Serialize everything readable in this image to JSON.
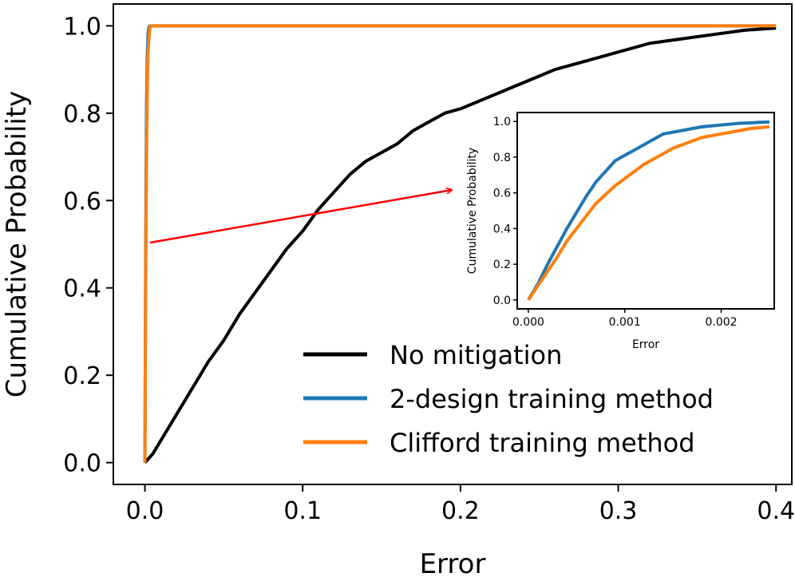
{
  "chart_data": [
    {
      "type": "line",
      "xlabel": "Error",
      "ylabel": "Cumulative Probability",
      "xlim": [
        -0.02,
        0.41
      ],
      "ylim": [
        -0.05,
        1.05
      ],
      "xticks": [
        "0.0",
        "0.1",
        "0.2",
        "0.3",
        "0.4"
      ],
      "yticks": [
        "0.0",
        "0.2",
        "0.4",
        "0.6",
        "0.8",
        "1.0"
      ],
      "legend": "lower-right",
      "grid": false,
      "series": [
        {
          "name": "No mitigation",
          "color": "#000000",
          "x": [
            0.0,
            0.005,
            0.01,
            0.015,
            0.02,
            0.03,
            0.04,
            0.05,
            0.06,
            0.07,
            0.08,
            0.09,
            0.1,
            0.11,
            0.12,
            0.13,
            0.14,
            0.15,
            0.16,
            0.17,
            0.18,
            0.19,
            0.2,
            0.22,
            0.24,
            0.26,
            0.28,
            0.3,
            0.32,
            0.34,
            0.36,
            0.38,
            0.4
          ],
          "y": [
            0.0,
            0.02,
            0.05,
            0.08,
            0.11,
            0.17,
            0.23,
            0.28,
            0.34,
            0.39,
            0.44,
            0.49,
            0.53,
            0.58,
            0.62,
            0.66,
            0.69,
            0.71,
            0.73,
            0.76,
            0.78,
            0.8,
            0.81,
            0.84,
            0.87,
            0.9,
            0.92,
            0.94,
            0.96,
            0.97,
            0.98,
            0.99,
            0.995
          ]
        },
        {
          "name": "2-design training method",
          "color": "#1f77b4",
          "x": [
            0.0,
            0.0005,
            0.001,
            0.0015,
            0.002,
            0.0025,
            0.003,
            0.4
          ],
          "y": [
            0.0,
            0.49,
            0.81,
            0.93,
            0.98,
            0.995,
            1.0,
            1.0
          ]
        },
        {
          "name": "Clifford training method",
          "color": "#ff7f0e",
          "x": [
            0.0,
            0.0005,
            0.001,
            0.0015,
            0.002,
            0.0025,
            0.003,
            0.0035,
            0.4
          ],
          "y": [
            0.0,
            0.42,
            0.7,
            0.86,
            0.94,
            0.97,
            0.99,
            1.0,
            1.0
          ]
        }
      ]
    },
    {
      "type": "line",
      "xlabel": "Error",
      "ylabel": "Cumulative Probability",
      "xlim": [
        -0.000115,
        0.00255
      ],
      "ylim": [
        -0.05,
        1.05
      ],
      "xticks": [
        "0.000",
        "0.001",
        "0.002"
      ],
      "yticks": [
        "0.0",
        "0.2",
        "0.4",
        "0.6",
        "0.8",
        "1.0"
      ],
      "grid": false,
      "series": [
        {
          "color": "#1f77b4",
          "x": [
            0.0,
            0.0001,
            0.0002,
            0.0003,
            0.0004,
            0.0005,
            0.0006,
            0.0007,
            0.0008,
            0.0009,
            0.001,
            0.0011,
            0.0012,
            0.0013,
            0.0014,
            0.0015,
            0.0016,
            0.0017,
            0.0018,
            0.0019,
            0.002,
            0.0021,
            0.0022,
            0.0023,
            0.0024,
            0.0025
          ],
          "y": [
            0.0,
            0.09,
            0.2,
            0.3,
            0.4,
            0.49,
            0.58,
            0.66,
            0.72,
            0.78,
            0.81,
            0.84,
            0.87,
            0.9,
            0.93,
            0.94,
            0.95,
            0.96,
            0.97,
            0.975,
            0.98,
            0.985,
            0.99,
            0.992,
            0.995,
            0.997
          ]
        },
        {
          "color": "#ff7f0e",
          "x": [
            0.0,
            0.0001,
            0.0002,
            0.0003,
            0.0004,
            0.0005,
            0.0006,
            0.0007,
            0.0008,
            0.0009,
            0.001,
            0.0011,
            0.0012,
            0.0013,
            0.0014,
            0.0015,
            0.0016,
            0.0017,
            0.0018,
            0.0019,
            0.002,
            0.0021,
            0.0022,
            0.0023,
            0.0024,
            0.0025
          ],
          "y": [
            0.0,
            0.08,
            0.16,
            0.24,
            0.33,
            0.4,
            0.47,
            0.54,
            0.59,
            0.64,
            0.68,
            0.72,
            0.76,
            0.79,
            0.82,
            0.85,
            0.87,
            0.89,
            0.91,
            0.92,
            0.93,
            0.94,
            0.95,
            0.96,
            0.965,
            0.97
          ]
        }
      ]
    }
  ]
}
